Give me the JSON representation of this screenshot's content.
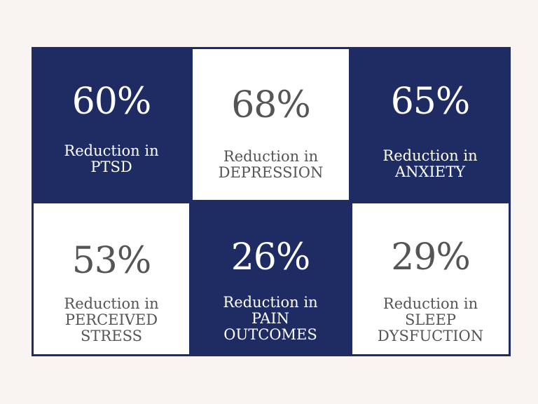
{
  "stats": [
    {
      "value": "60%",
      "lines": [
        "Reduction in",
        "PTSD"
      ]
    },
    {
      "value": "68%",
      "lines": [
        "Reduction in",
        "DEPRESSION"
      ]
    },
    {
      "value": "65%",
      "lines": [
        "Reduction in",
        "ANXIETY"
      ]
    },
    {
      "value": "53%",
      "lines": [
        "Reduction in",
        "PERCEIVED",
        "STRESS"
      ]
    },
    {
      "value": "26%",
      "lines": [
        "Reduction in",
        "PAIN",
        "OUTCOMES"
      ]
    },
    {
      "value": "29%",
      "lines": [
        "Reduction in",
        "SLEEP",
        "DYSFUCTION"
      ]
    }
  ],
  "colors": {
    "navy": "#1f2b63",
    "white": "#ffffff",
    "text_gray": "#555555",
    "background": "#f9f4f2"
  }
}
